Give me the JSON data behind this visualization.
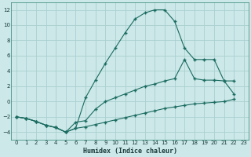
{
  "xlabel": "Humidex (Indice chaleur)",
  "bg_color": "#cce8e8",
  "grid_color": "#aacfcf",
  "line_color": "#1a6b60",
  "xlim": [
    -0.5,
    23.5
  ],
  "ylim": [
    -5,
    13
  ],
  "xticks": [
    0,
    1,
    2,
    3,
    4,
    5,
    6,
    7,
    8,
    9,
    10,
    11,
    12,
    13,
    14,
    15,
    16,
    17,
    18,
    19,
    20,
    21,
    22,
    23
  ],
  "yticks": [
    -4,
    -2,
    0,
    2,
    4,
    6,
    8,
    10,
    12
  ],
  "line1_x": [
    0,
    1,
    2,
    3,
    4,
    5,
    6,
    7,
    8,
    9,
    10,
    11,
    12,
    13,
    14,
    15,
    16,
    17,
    18,
    19,
    20,
    21,
    22
  ],
  "line1_y": [
    -2,
    -2.2,
    -2.6,
    -3.1,
    -3.4,
    -4.0,
    -3.5,
    -3.3,
    -3.0,
    -2.7,
    -2.4,
    -2.1,
    -1.8,
    -1.5,
    -1.2,
    -0.9,
    -0.7,
    -0.5,
    -0.3,
    -0.2,
    -0.1,
    0.0,
    0.3
  ],
  "line2_x": [
    0,
    1,
    2,
    3,
    4,
    5,
    6,
    7,
    8,
    9,
    10,
    11,
    12,
    13,
    14,
    15,
    16,
    17,
    18,
    19,
    20,
    21,
    22
  ],
  "line2_y": [
    -2,
    -2.2,
    -2.6,
    -3.1,
    -3.4,
    -4.0,
    -3.5,
    0.5,
    2.8,
    5.0,
    7.0,
    9.0,
    10.8,
    11.6,
    12.0,
    12.0,
    10.5,
    7.0,
    5.5,
    5.5,
    5.5,
    2.7,
    2.7
  ],
  "line3_x": [
    0,
    1,
    2,
    3,
    4,
    5,
    6,
    7,
    8,
    9,
    10,
    11,
    12,
    13,
    14,
    15,
    16,
    17,
    18,
    19,
    20,
    21,
    22
  ],
  "line3_y": [
    -2,
    -2.2,
    -2.6,
    -3.1,
    -3.4,
    -4.0,
    -2.7,
    -2.5,
    -1.0,
    0.0,
    0.5,
    1.0,
    1.5,
    2.0,
    2.3,
    2.7,
    3.0,
    5.5,
    3.0,
    2.8,
    2.8,
    2.7,
    1.0
  ]
}
